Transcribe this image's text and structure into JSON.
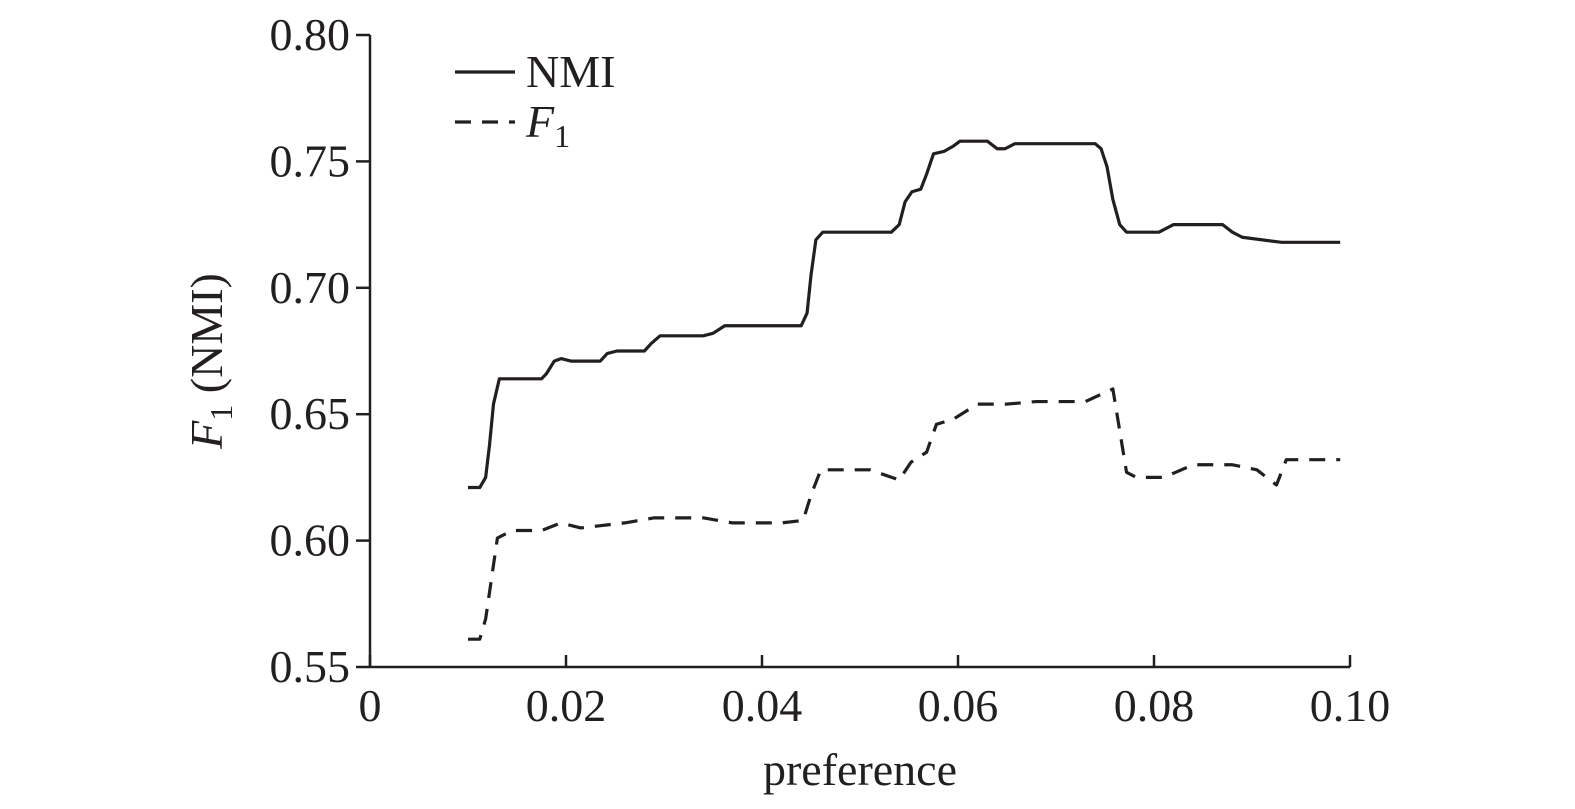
{
  "chart_data": {
    "type": "line",
    "title": "",
    "xlabel": "preference",
    "ylabel": {
      "main": "F",
      "sub": "1",
      "rest": " (NMI)"
    },
    "xlim": [
      0,
      0.1
    ],
    "ylim": [
      0.55,
      0.8
    ],
    "x_ticks": [
      {
        "value": 0,
        "label": "0"
      },
      {
        "value": 0.02,
        "label": "0.02"
      },
      {
        "value": 0.04,
        "label": "0.04"
      },
      {
        "value": 0.06,
        "label": "0.06"
      },
      {
        "value": 0.08,
        "label": "0.08"
      },
      {
        "value": 0.1,
        "label": "0.10"
      }
    ],
    "y_ticks": [
      {
        "value": 0.55,
        "label": "0.55"
      },
      {
        "value": 0.6,
        "label": "0.60"
      },
      {
        "value": 0.65,
        "label": "0.65"
      },
      {
        "value": 0.7,
        "label": "0.70"
      },
      {
        "value": 0.75,
        "label": "0.75"
      },
      {
        "value": 0.8,
        "label": "0.80"
      }
    ],
    "grid": false,
    "legend_position": "top-left",
    "series": [
      {
        "name": "NMI",
        "legend": {
          "main": "NMI",
          "sub": ""
        },
        "style": "solid",
        "color": "#231f20",
        "points": [
          [
            0.01,
            0.621
          ],
          [
            0.0112,
            0.621
          ],
          [
            0.0118,
            0.625
          ],
          [
            0.0122,
            0.638
          ],
          [
            0.0126,
            0.654
          ],
          [
            0.0132,
            0.664
          ],
          [
            0.014,
            0.664
          ],
          [
            0.0175,
            0.664
          ],
          [
            0.018,
            0.666
          ],
          [
            0.0188,
            0.671
          ],
          [
            0.0195,
            0.672
          ],
          [
            0.0205,
            0.671
          ],
          [
            0.0235,
            0.671
          ],
          [
            0.0242,
            0.674
          ],
          [
            0.0252,
            0.675
          ],
          [
            0.028,
            0.675
          ],
          [
            0.0287,
            0.678
          ],
          [
            0.0296,
            0.681
          ],
          [
            0.034,
            0.681
          ],
          [
            0.035,
            0.682
          ],
          [
            0.0362,
            0.685
          ],
          [
            0.044,
            0.685
          ],
          [
            0.0446,
            0.69
          ],
          [
            0.045,
            0.705
          ],
          [
            0.0455,
            0.719
          ],
          [
            0.0462,
            0.722
          ],
          [
            0.0532,
            0.722
          ],
          [
            0.054,
            0.725
          ],
          [
            0.0546,
            0.734
          ],
          [
            0.0553,
            0.738
          ],
          [
            0.0562,
            0.739
          ],
          [
            0.0568,
            0.745
          ],
          [
            0.0575,
            0.753
          ],
          [
            0.0586,
            0.754
          ],
          [
            0.0595,
            0.756
          ],
          [
            0.0602,
            0.758
          ],
          [
            0.063,
            0.758
          ],
          [
            0.064,
            0.755
          ],
          [
            0.0648,
            0.755
          ],
          [
            0.0658,
            0.757
          ],
          [
            0.074,
            0.757
          ],
          [
            0.0746,
            0.755
          ],
          [
            0.0752,
            0.748
          ],
          [
            0.0758,
            0.735
          ],
          [
            0.0765,
            0.725
          ],
          [
            0.0772,
            0.722
          ],
          [
            0.0805,
            0.722
          ],
          [
            0.082,
            0.725
          ],
          [
            0.087,
            0.725
          ],
          [
            0.088,
            0.722
          ],
          [
            0.089,
            0.72
          ],
          [
            0.093,
            0.718
          ],
          [
            0.099,
            0.718
          ]
        ]
      },
      {
        "name": "F1",
        "legend": {
          "main": "F",
          "sub": "1"
        },
        "style": "dashed",
        "color": "#231f20",
        "points": [
          [
            0.01,
            0.561
          ],
          [
            0.0112,
            0.561
          ],
          [
            0.0118,
            0.569
          ],
          [
            0.0124,
            0.585
          ],
          [
            0.013,
            0.601
          ],
          [
            0.0145,
            0.604
          ],
          [
            0.0175,
            0.604
          ],
          [
            0.0195,
            0.607
          ],
          [
            0.0215,
            0.605
          ],
          [
            0.026,
            0.607
          ],
          [
            0.029,
            0.609
          ],
          [
            0.034,
            0.609
          ],
          [
            0.037,
            0.607
          ],
          [
            0.042,
            0.607
          ],
          [
            0.0442,
            0.608
          ],
          [
            0.045,
            0.618
          ],
          [
            0.046,
            0.628
          ],
          [
            0.051,
            0.628
          ],
          [
            0.054,
            0.624
          ],
          [
            0.0552,
            0.631
          ],
          [
            0.0568,
            0.635
          ],
          [
            0.0578,
            0.646
          ],
          [
            0.0595,
            0.648
          ],
          [
            0.062,
            0.654
          ],
          [
            0.065,
            0.654
          ],
          [
            0.068,
            0.655
          ],
          [
            0.073,
            0.655
          ],
          [
            0.0758,
            0.66
          ],
          [
            0.0772,
            0.627
          ],
          [
            0.0782,
            0.625
          ],
          [
            0.081,
            0.625
          ],
          [
            0.084,
            0.63
          ],
          [
            0.088,
            0.63
          ],
          [
            0.0905,
            0.628
          ],
          [
            0.0925,
            0.622
          ],
          [
            0.0935,
            0.632
          ],
          [
            0.099,
            0.632
          ]
        ]
      }
    ]
  }
}
